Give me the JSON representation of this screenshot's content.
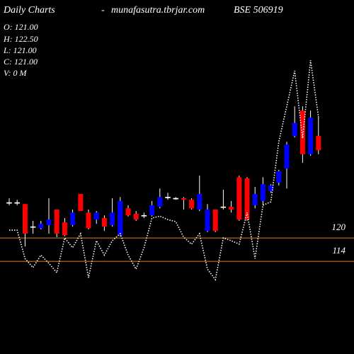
{
  "header": {
    "title": "Daily Charts",
    "separator": "-",
    "site": "munafasutra.tbrjar.com",
    "symbol": "BSE 506919",
    "info": [
      "O: 121.00",
      "H: 122.50",
      "L: 121.00",
      "C: 121.00",
      "V: 0  M"
    ]
  },
  "chart_data": {
    "type": "candlestick",
    "ylim": [
      90.2,
      181.1
    ],
    "up_color": "#0000ff",
    "down_color": "#ff0000",
    "line_color": "#ffffff",
    "hline_color": "#e0821a",
    "hlines": [
      120,
      114
    ],
    "open": [
      129.1,
      129.1,
      128.7,
      122.9,
      122.5,
      123.3,
      127.3,
      124.0,
      123.3,
      131.3,
      126.5,
      124.7,
      125.1,
      123.3,
      120.7,
      127.6,
      126.2,
      125.8,
      125.8,
      128.0,
      130.5,
      130.2,
      130.2,
      129.8,
      127.3,
      121.8,
      127.3,
      128.0,
      128.0,
      135.6,
      135.3,
      128.4,
      129.5,
      132.0,
      134.2,
      137.8,
      146.2,
      152.7,
      141.5,
      146.2
    ],
    "high": [
      130.2,
      129.8,
      128.7,
      124.4,
      124.4,
      130.2,
      127.3,
      125.1,
      127.3,
      131.3,
      127.3,
      126.9,
      125.8,
      130.2,
      130.5,
      128.4,
      126.9,
      126.5,
      129.5,
      132.7,
      131.6,
      130.5,
      130.5,
      130.2,
      136.0,
      128.7,
      127.3,
      132.4,
      129.5,
      136.0,
      135.6,
      133.1,
      135.6,
      133.8,
      137.5,
      144.7,
      153.8,
      153.8,
      152.7,
      151.3
    ],
    "low": [
      128.4,
      128.4,
      117.8,
      121.1,
      122.2,
      121.1,
      120.2,
      120.4,
      122.9,
      126.9,
      122.2,
      123.6,
      121.8,
      122.9,
      120.4,
      125.5,
      124.4,
      125.1,
      125.5,
      127.6,
      129.8,
      129.8,
      127.3,
      127.3,
      126.9,
      121.5,
      121.5,
      127.3,
      126.5,
      124.4,
      124.4,
      127.6,
      128.4,
      131.6,
      133.5,
      132.7,
      145.8,
      139.3,
      141.1,
      141.5
    ],
    "close": [
      129.1,
      129.1,
      121.1,
      122.9,
      123.6,
      124.7,
      121.1,
      120.7,
      126.5,
      126.9,
      122.5,
      126.5,
      122.9,
      126.5,
      129.5,
      125.8,
      124.7,
      125.8,
      128.4,
      130.5,
      130.5,
      130.2,
      129.8,
      127.6,
      131.3,
      127.3,
      121.8,
      128.0,
      127.3,
      124.7,
      124.7,
      131.3,
      133.8,
      133.5,
      137.1,
      144.0,
      149.5,
      141.5,
      150.9,
      142.5
    ],
    "line": [
      122.0,
      122.0,
      114.7,
      112.4,
      115.6,
      113.5,
      111.1,
      120.0,
      117.5,
      121.1,
      109.8,
      119.3,
      115.6,
      119.3,
      121.1,
      115.6,
      112.0,
      117.5,
      125.1,
      125.6,
      124.7,
      124.2,
      120.2,
      118.4,
      121.1,
      112.0,
      109.3,
      120.0,
      119.3,
      118.4,
      126.5,
      114.7,
      128.4,
      129.3,
      144.7,
      153.8,
      162.9,
      145.6,
      165.6,
      151.1
    ]
  }
}
